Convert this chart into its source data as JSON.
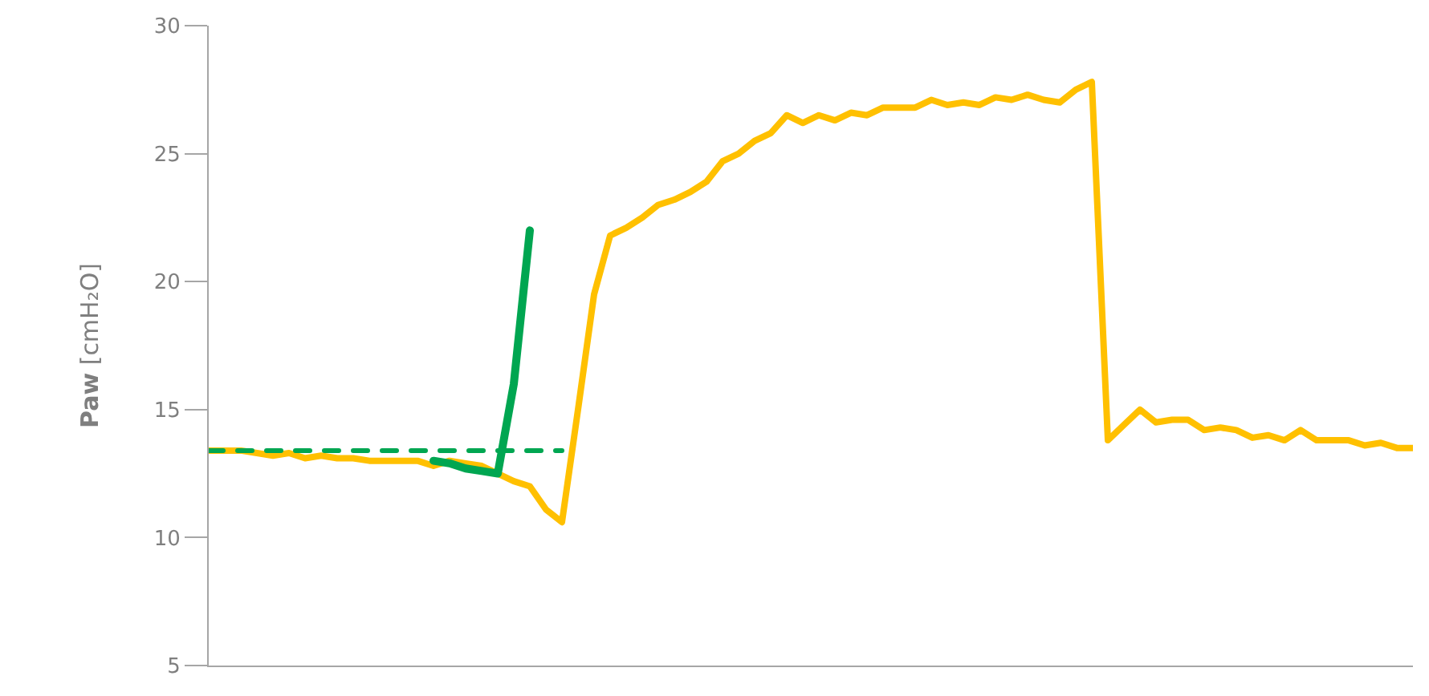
{
  "chart_data": {
    "type": "line",
    "ylabel": "Paw [cmH₂O]",
    "ylim": [
      5,
      30
    ],
    "yticks": [
      5,
      10,
      15,
      20,
      25,
      30
    ],
    "marker": "none",
    "tick_labels": "y",
    "categories": [
      null,
      null,
      null,
      null,
      null,
      null,
      null,
      null,
      null,
      null,
      null,
      null,
      null,
      null,
      null,
      null,
      null,
      null,
      null,
      null,
      null,
      null,
      null,
      null,
      null,
      null,
      null,
      null,
      null,
      null,
      null,
      null,
      null,
      null,
      null,
      null,
      null,
      null,
      null,
      null,
      null,
      null,
      null,
      null,
      null,
      null,
      null,
      null,
      null,
      null,
      null,
      null,
      null,
      null,
      null,
      null,
      null,
      null,
      null,
      null,
      null,
      null,
      null,
      null,
      null,
      null,
      null,
      null,
      null,
      null,
      null,
      null,
      null,
      null,
      null,
      null
    ],
    "series": [
      {
        "color": "#ffc000",
        "line_style": "solid",
        "values": [
          13.4,
          13.4,
          13.4,
          13.3,
          13.2,
          13.3,
          13.1,
          13.2,
          13.1,
          13.1,
          13.0,
          13.0,
          13.0,
          13.0,
          12.8,
          13.0,
          12.9,
          12.8,
          12.5,
          12.2,
          12.0,
          11.1,
          10.6,
          15.0,
          19.5,
          21.8,
          22.1,
          22.5,
          23.0,
          23.2,
          23.5,
          23.9,
          24.7,
          25.0,
          25.5,
          25.8,
          26.5,
          26.2,
          26.5,
          26.3,
          26.6,
          26.5,
          26.8,
          26.8,
          26.8,
          27.1,
          26.9,
          27.0,
          26.9,
          27.2,
          27.1,
          27.3,
          27.1,
          27.0,
          27.5,
          27.8,
          13.8,
          14.4,
          15.0,
          14.5,
          14.6,
          14.6,
          14.2,
          14.3,
          14.2,
          13.9,
          14.0,
          13.8,
          14.2,
          13.8,
          13.8,
          13.8,
          13.6,
          13.7,
          13.5,
          13.5
        ]
      },
      {
        "color": "#00a651",
        "line_style": "dashed",
        "values": [
          13.4,
          13.4,
          13.4,
          13.4,
          13.4,
          13.4,
          13.4,
          13.4,
          13.4,
          13.4,
          13.4,
          13.4,
          13.4,
          13.4,
          13.4,
          13.4,
          13.4,
          13.4,
          13.4,
          13.4,
          13.4,
          13.4,
          13.4,
          null,
          null,
          null,
          null,
          null,
          null,
          null,
          null,
          null,
          null,
          null,
          null,
          null,
          null,
          null,
          null,
          null,
          null,
          null,
          null,
          null,
          null,
          null,
          null,
          null,
          null,
          null,
          null,
          null,
          null,
          null,
          null,
          null,
          null,
          null,
          null,
          null,
          null,
          null,
          null,
          null,
          null,
          null,
          null,
          null,
          null,
          null,
          null,
          null,
          null,
          null,
          null,
          null
        ]
      },
      {
        "color": "#00a651",
        "line_style": "solid",
        "values": [
          null,
          null,
          null,
          null,
          null,
          null,
          null,
          null,
          null,
          null,
          null,
          null,
          null,
          null,
          13.0,
          12.9,
          12.7,
          12.6,
          12.5,
          16.0,
          22.0,
          null,
          null,
          null,
          null,
          null,
          null,
          null,
          null,
          null,
          null,
          null,
          null,
          null,
          null,
          null,
          null,
          null,
          null,
          null,
          null,
          null,
          null,
          null,
          null,
          null,
          null,
          null,
          null,
          null,
          null,
          null,
          null,
          null,
          null,
          null,
          null,
          null,
          null,
          null,
          null,
          null,
          null,
          null,
          null,
          null,
          null,
          null,
          null,
          null,
          null,
          null,
          null,
          null,
          null,
          null
        ]
      }
    ]
  }
}
